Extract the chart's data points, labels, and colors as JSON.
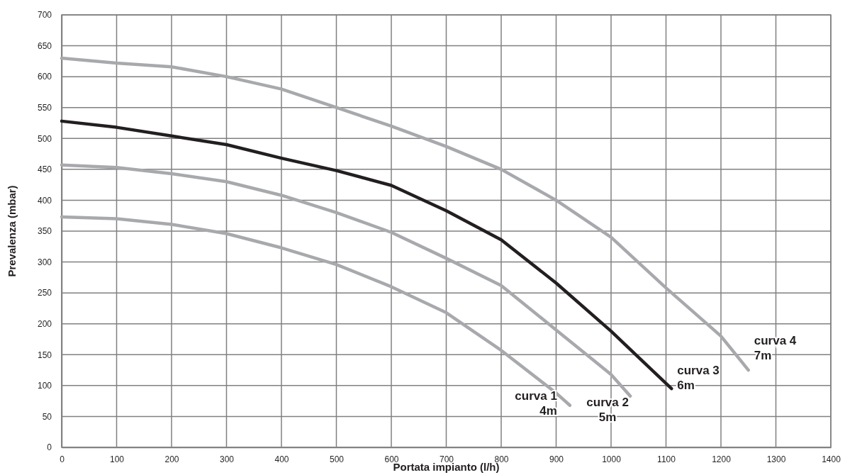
{
  "chart_data": {
    "type": "line",
    "xlabel": "Portata impianto (l/h)",
    "ylabel": "Prevalenza (mbar)",
    "xlim": [
      0,
      1400
    ],
    "xticks": [
      0,
      100,
      200,
      300,
      400,
      500,
      600,
      700,
      800,
      900,
      1000,
      1100,
      1200,
      1300,
      1400
    ],
    "ylim": [
      0,
      700
    ],
    "yticks": [
      0,
      50,
      100,
      150,
      200,
      250,
      300,
      350,
      400,
      450,
      500,
      550,
      600,
      650,
      700
    ],
    "grid": true,
    "marker": "none",
    "line_style": "solid",
    "series": [
      {
        "name": "curva 1\n4m",
        "color": "#a7a9ac",
        "x": [
          0,
          100,
          200,
          300,
          400,
          500,
          600,
          700,
          800,
          900,
          925
        ],
        "values": [
          373,
          370,
          361,
          346,
          323,
          296,
          260,
          218,
          157,
          88,
          68
        ]
      },
      {
        "name": "curva 2\n5m",
        "color": "#a7a9ac",
        "x": [
          0,
          100,
          200,
          300,
          400,
          500,
          600,
          700,
          800,
          900,
          1000,
          1035
        ],
        "values": [
          457,
          453,
          443,
          430,
          408,
          380,
          348,
          306,
          262,
          190,
          118,
          83
        ]
      },
      {
        "name": "curva 3\n6m",
        "color": "#231f20",
        "x": [
          0,
          100,
          200,
          300,
          400,
          500,
          600,
          700,
          800,
          900,
          1000,
          1110
        ],
        "values": [
          528,
          518,
          504,
          490,
          468,
          448,
          424,
          383,
          336,
          266,
          188,
          95
        ]
      },
      {
        "name": "curva 4\n7m",
        "color": "#a7a9ac",
        "x": [
          0,
          100,
          200,
          300,
          400,
          500,
          600,
          700,
          800,
          900,
          1000,
          1100,
          1200,
          1250
        ],
        "values": [
          630,
          622,
          616,
          600,
          580,
          550,
          520,
          487,
          450,
          400,
          340,
          258,
          180,
          125
        ]
      }
    ]
  }
}
